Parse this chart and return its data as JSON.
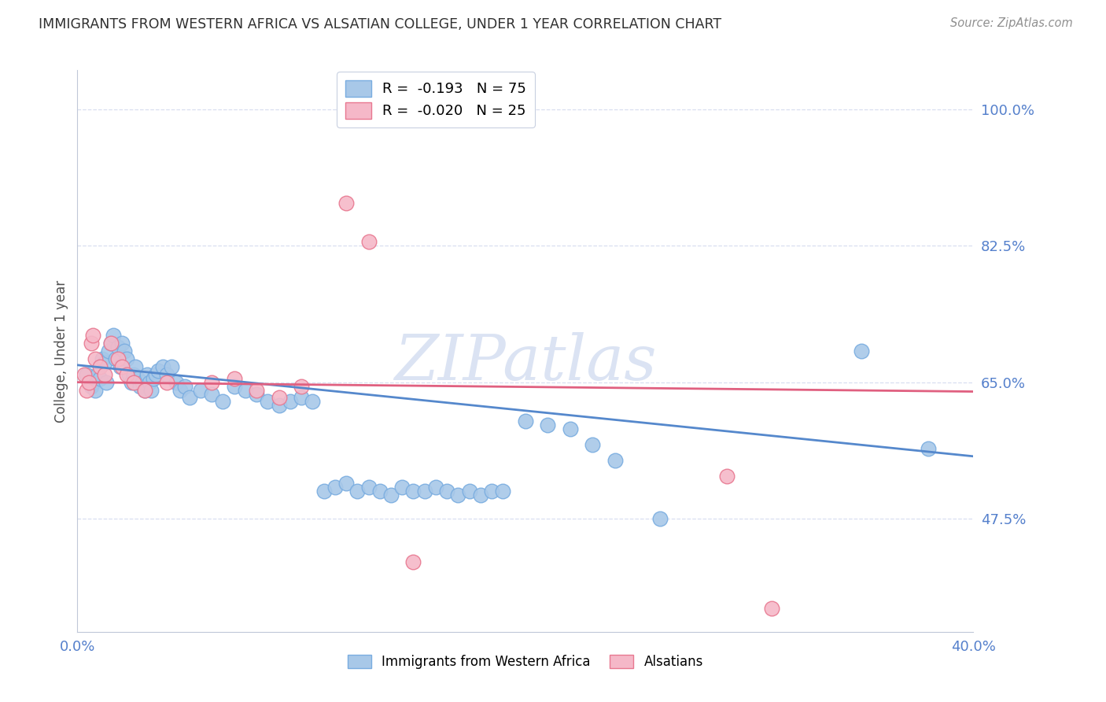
{
  "title": "IMMIGRANTS FROM WESTERN AFRICA VS ALSATIAN COLLEGE, UNDER 1 YEAR CORRELATION CHART",
  "source": "Source: ZipAtlas.com",
  "ylabel": "College, Under 1 year",
  "xlim": [
    0.0,
    0.4
  ],
  "ylim": [
    0.33,
    1.05
  ],
  "yticks": [
    0.475,
    0.65,
    0.825,
    1.0
  ],
  "ytick_labels": [
    "47.5%",
    "65.0%",
    "82.5%",
    "100.0%"
  ],
  "xticks": [
    0.0,
    0.1,
    0.2,
    0.3,
    0.4
  ],
  "xtick_labels": [
    "0.0%",
    "",
    "",
    "",
    "40.0%"
  ],
  "blue_scatter_x": [
    0.004,
    0.006,
    0.007,
    0.008,
    0.009,
    0.01,
    0.011,
    0.012,
    0.013,
    0.014,
    0.015,
    0.016,
    0.017,
    0.018,
    0.019,
    0.02,
    0.021,
    0.022,
    0.023,
    0.024,
    0.025,
    0.026,
    0.027,
    0.028,
    0.029,
    0.03,
    0.031,
    0.032,
    0.033,
    0.034,
    0.035,
    0.036,
    0.038,
    0.04,
    0.042,
    0.044,
    0.046,
    0.048,
    0.05,
    0.055,
    0.06,
    0.065,
    0.07,
    0.075,
    0.08,
    0.085,
    0.09,
    0.095,
    0.1,
    0.105,
    0.11,
    0.115,
    0.12,
    0.125,
    0.13,
    0.135,
    0.14,
    0.145,
    0.15,
    0.155,
    0.16,
    0.165,
    0.17,
    0.175,
    0.18,
    0.185,
    0.19,
    0.2,
    0.21,
    0.22,
    0.23,
    0.24,
    0.26,
    0.35,
    0.38
  ],
  "blue_scatter_y": [
    0.66,
    0.645,
    0.65,
    0.64,
    0.66,
    0.655,
    0.68,
    0.675,
    0.65,
    0.69,
    0.7,
    0.71,
    0.68,
    0.695,
    0.67,
    0.7,
    0.69,
    0.68,
    0.66,
    0.65,
    0.66,
    0.67,
    0.655,
    0.645,
    0.65,
    0.64,
    0.66,
    0.65,
    0.64,
    0.655,
    0.66,
    0.665,
    0.67,
    0.66,
    0.67,
    0.65,
    0.64,
    0.645,
    0.63,
    0.64,
    0.635,
    0.625,
    0.645,
    0.64,
    0.635,
    0.625,
    0.62,
    0.625,
    0.63,
    0.625,
    0.51,
    0.515,
    0.52,
    0.51,
    0.515,
    0.51,
    0.505,
    0.515,
    0.51,
    0.51,
    0.515,
    0.51,
    0.505,
    0.51,
    0.505,
    0.51,
    0.51,
    0.6,
    0.595,
    0.59,
    0.57,
    0.55,
    0.475,
    0.69,
    0.565
  ],
  "pink_scatter_x": [
    0.003,
    0.004,
    0.005,
    0.006,
    0.007,
    0.008,
    0.01,
    0.012,
    0.015,
    0.018,
    0.02,
    0.022,
    0.025,
    0.03,
    0.04,
    0.06,
    0.07,
    0.08,
    0.09,
    0.1,
    0.12,
    0.13,
    0.15,
    0.29,
    0.31
  ],
  "pink_scatter_y": [
    0.66,
    0.64,
    0.65,
    0.7,
    0.71,
    0.68,
    0.67,
    0.66,
    0.7,
    0.68,
    0.67,
    0.66,
    0.65,
    0.64,
    0.65,
    0.65,
    0.655,
    0.64,
    0.63,
    0.645,
    0.88,
    0.83,
    0.42,
    0.53,
    0.36
  ],
  "blue_line_x0": 0.0,
  "blue_line_x1": 0.4,
  "blue_line_y0": 0.672,
  "blue_line_y1": 0.555,
  "pink_line_x0": 0.0,
  "pink_line_x1": 0.4,
  "pink_line_y0": 0.65,
  "pink_line_y1": 0.638,
  "blue_dot_color": "#a8c8e8",
  "blue_edge_color": "#7aade0",
  "pink_dot_color": "#f5b8c8",
  "pink_edge_color": "#e87890",
  "blue_line_color": "#5588cc",
  "pink_line_color": "#e06080",
  "watermark": "ZIPatlas",
  "watermark_color": "#ccd8ee",
  "grid_color": "#d8dff0",
  "title_color": "#303030",
  "tick_color": "#5580cc",
  "source_color": "#909090",
  "ylabel_color": "#505050",
  "background_color": "#ffffff",
  "legend_edge_color": "#c8d0e0"
}
